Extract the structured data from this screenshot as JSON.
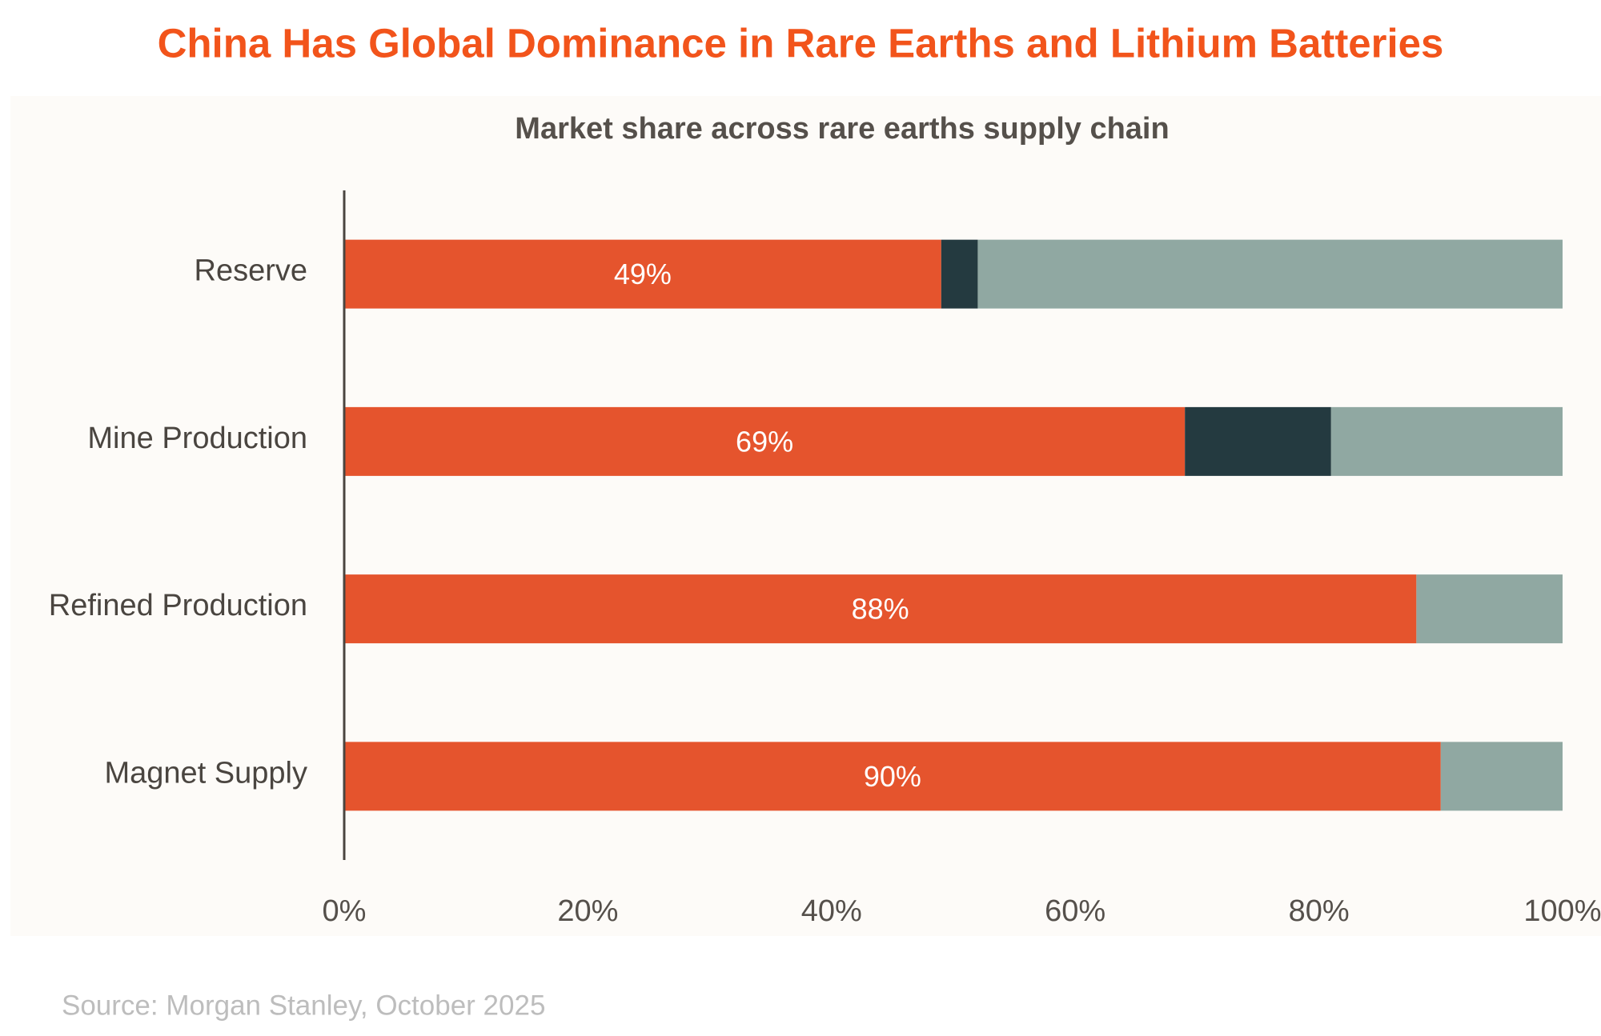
{
  "chart_data": {
    "type": "stacked-barh",
    "title": "China Has Global Dominance in Rare Earths and Lithium Batteries",
    "subtitle": "Market share across rare earths supply chain",
    "source": "Source: Morgan Stanley, October 2025",
    "categories": [
      "Reserve",
      "Mine Production",
      "Refined Production",
      "Magnet Supply"
    ],
    "series": [
      {
        "color": "#e5542d",
        "values": [
          49,
          69,
          88,
          90
        ],
        "value_labels": [
          "49%",
          "69%",
          "88%",
          "90%"
        ]
      },
      {
        "color": "#243a40",
        "values": [
          3,
          12,
          0,
          0
        ]
      },
      {
        "color": "#90a8a2",
        "values": [
          48,
          19,
          12,
          10
        ]
      }
    ],
    "xlim": [
      0,
      100
    ],
    "xticks": [
      {
        "value": 0,
        "label": "0%"
      },
      {
        "value": 20,
        "label": "20%"
      },
      {
        "value": 40,
        "label": "40%"
      },
      {
        "value": 60,
        "label": "60%"
      },
      {
        "value": 80,
        "label": "80%"
      },
      {
        "value": 100,
        "label": "100%"
      }
    ]
  }
}
